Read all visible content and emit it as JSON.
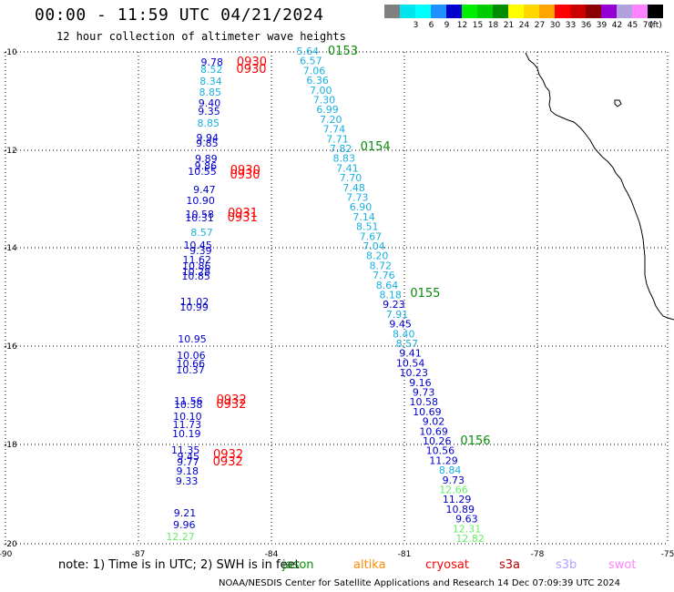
{
  "title": "00:00 - 11:59 UTC 04/21/2024",
  "subtitle": "12 hour collection of altimeter wave heights",
  "legend": {
    "unit": "(ft)",
    "bins": [
      {
        "label": "",
        "color": "#808080"
      },
      {
        "label": "3",
        "color": "#00e5ee"
      },
      {
        "label": "6",
        "color": "#00ffff"
      },
      {
        "label": "9",
        "color": "#1e90ff"
      },
      {
        "label": "12",
        "color": "#0000cd"
      },
      {
        "label": "15",
        "color": "#00ee00"
      },
      {
        "label": "18",
        "color": "#00cd00"
      },
      {
        "label": "21",
        "color": "#008b00"
      },
      {
        "label": "24",
        "color": "#ffff00"
      },
      {
        "label": "27",
        "color": "#ffd700"
      },
      {
        "label": "30",
        "color": "#ffa500"
      },
      {
        "label": "33",
        "color": "#ff0000"
      },
      {
        "label": "36",
        "color": "#cd0000"
      },
      {
        "label": "39",
        "color": "#8b0000"
      },
      {
        "label": "42",
        "color": "#9400d3"
      },
      {
        "label": "45",
        "color": "#b0a0e0"
      },
      {
        "label": "70",
        "color": "#ff82ff"
      },
      {
        "label": "",
        "color": "#000000"
      }
    ]
  },
  "axes": {
    "lat_labels": [
      "-10",
      "-12",
      "-14",
      "-16",
      "-18",
      "-20"
    ],
    "lon_labels": [
      "-90",
      "-87",
      "-84",
      "-81",
      "-78",
      "-75"
    ]
  },
  "colors": {
    "jason": "#0a8c0a",
    "altika": "#ff8c00",
    "cryosat": "#ff0000",
    "s3a": "#b00000",
    "s3b": "#b0a0ff",
    "swot": "#ff82ff",
    "wave_light": "#1ab0e0",
    "wave_dark": "#0000cd",
    "wave_green": "#66ee66"
  },
  "passes": {
    "west": [
      {
        "text": "9.78",
        "c": "d"
      },
      {
        "text": "8.52",
        "c": "l"
      },
      {
        "text": "8.34",
        "c": "l"
      },
      {
        "text": "8.85",
        "c": "l"
      },
      {
        "text": "9.40",
        "c": "d"
      },
      {
        "text": "9.35",
        "c": "d"
      },
      {
        "text": "8.85",
        "c": "l"
      },
      {
        "text": "9.94",
        "c": "d"
      },
      {
        "text": "9.85",
        "c": "d"
      },
      {
        "text": "9.89",
        "c": "d"
      },
      {
        "text": "9.86",
        "c": "d"
      },
      {
        "text": "10.55",
        "c": "d"
      },
      {
        "text": "9.47",
        "c": "d"
      },
      {
        "text": "10.90",
        "c": "d"
      },
      {
        "text": "10.58",
        "c": "d"
      },
      {
        "text": "10.31",
        "c": "d"
      },
      {
        "text": "8.57",
        "c": "l"
      },
      {
        "text": "10.45",
        "c": "d"
      },
      {
        "text": "9.39",
        "c": "d"
      },
      {
        "text": "11.62",
        "c": "d"
      },
      {
        "text": "10.86",
        "c": "d"
      },
      {
        "text": "10.28",
        "c": "d"
      },
      {
        "text": "10.85",
        "c": "d"
      },
      {
        "text": "11.02",
        "c": "d"
      },
      {
        "text": "10.99",
        "c": "d"
      },
      {
        "text": "10.95",
        "c": "d"
      },
      {
        "text": "10.06",
        "c": "d"
      },
      {
        "text": "10.66",
        "c": "d"
      },
      {
        "text": "10.37",
        "c": "d"
      },
      {
        "text": "11.56",
        "c": "d"
      },
      {
        "text": "10.38",
        "c": "d"
      },
      {
        "text": "10.10",
        "c": "d"
      },
      {
        "text": "11.73",
        "c": "d"
      },
      {
        "text": "10.19",
        "c": "d"
      },
      {
        "text": "11.35",
        "c": "d"
      },
      {
        "text": "9.45",
        "c": "d"
      },
      {
        "text": "9.77",
        "c": "d"
      },
      {
        "text": "9.18",
        "c": "d"
      },
      {
        "text": "9.33",
        "c": "d"
      },
      {
        "text": "9.21",
        "c": "d"
      },
      {
        "text": "9.96",
        "c": "d"
      },
      {
        "text": "12.27",
        "c": "g"
      }
    ],
    "west_times": [
      "0930",
      "0930",
      "0930",
      "0930",
      "0931",
      "0931",
      "0932",
      "0932",
      "0932",
      "0932"
    ],
    "east": [
      {
        "text": "5.64",
        "c": "l"
      },
      {
        "text": "6.57",
        "c": "l"
      },
      {
        "text": "7.06",
        "c": "l"
      },
      {
        "text": "6.36",
        "c": "l"
      },
      {
        "text": "7.00",
        "c": "l"
      },
      {
        "text": "7.30",
        "c": "l"
      },
      {
        "text": "6.99",
        "c": "l"
      },
      {
        "text": "7.20",
        "c": "l"
      },
      {
        "text": "7.74",
        "c": "l"
      },
      {
        "text": "7.71",
        "c": "l"
      },
      {
        "text": "7.82",
        "c": "l"
      },
      {
        "text": "8.83",
        "c": "l"
      },
      {
        "text": "7.41",
        "c": "l"
      },
      {
        "text": "7.70",
        "c": "l"
      },
      {
        "text": "7.48",
        "c": "l"
      },
      {
        "text": "7.73",
        "c": "l"
      },
      {
        "text": "6.90",
        "c": "l"
      },
      {
        "text": "7.14",
        "c": "l"
      },
      {
        "text": "8.51",
        "c": "l"
      },
      {
        "text": "7.67",
        "c": "l"
      },
      {
        "text": "7.04",
        "c": "l"
      },
      {
        "text": "8.20",
        "c": "l"
      },
      {
        "text": "8.72",
        "c": "l"
      },
      {
        "text": "7.76",
        "c": "l"
      },
      {
        "text": "8.64",
        "c": "l"
      },
      {
        "text": "8.18",
        "c": "l"
      },
      {
        "text": "9.23",
        "c": "d"
      },
      {
        "text": "7.91",
        "c": "l"
      },
      {
        "text": "9.45",
        "c": "d"
      },
      {
        "text": "8.40",
        "c": "l"
      },
      {
        "text": "8.57",
        "c": "l"
      },
      {
        "text": "9.41",
        "c": "d"
      },
      {
        "text": "10.54",
        "c": "d"
      },
      {
        "text": "10.23",
        "c": "d"
      },
      {
        "text": "9.16",
        "c": "d"
      },
      {
        "text": "9.73",
        "c": "d"
      },
      {
        "text": "10.58",
        "c": "d"
      },
      {
        "text": "10.69",
        "c": "d"
      },
      {
        "text": "9.02",
        "c": "d"
      },
      {
        "text": "10.69",
        "c": "d"
      },
      {
        "text": "10.26",
        "c": "d"
      },
      {
        "text": "10.56",
        "c": "d"
      },
      {
        "text": "11.29",
        "c": "d"
      },
      {
        "text": "8.84",
        "c": "l"
      },
      {
        "text": "9.73",
        "c": "d"
      },
      {
        "text": "12.66",
        "c": "g"
      },
      {
        "text": "11.29",
        "c": "d"
      },
      {
        "text": "10.89",
        "c": "d"
      },
      {
        "text": "9.63",
        "c": "d"
      },
      {
        "text": "12.31",
        "c": "g"
      },
      {
        "text": "12.82",
        "c": "g"
      }
    ],
    "east_times": [
      "0153",
      "0154",
      "0155",
      "0156"
    ]
  },
  "footer": {
    "note": "note: 1) Time is in UTC; 2) SWH is in feet",
    "satellites": [
      {
        "name": "jason",
        "label": "jason"
      },
      {
        "name": "altika",
        "label": "altika"
      },
      {
        "name": "cryosat",
        "label": "cryosat"
      },
      {
        "name": "s3a",
        "label": "s3a"
      },
      {
        "name": "s3b",
        "label": "s3b"
      },
      {
        "name": "swot",
        "label": "swot"
      }
    ],
    "credit": "NOAA/NESDIS Center for Satellite Applications and Research   14 Dec 07:09:39 UTC 2024"
  }
}
